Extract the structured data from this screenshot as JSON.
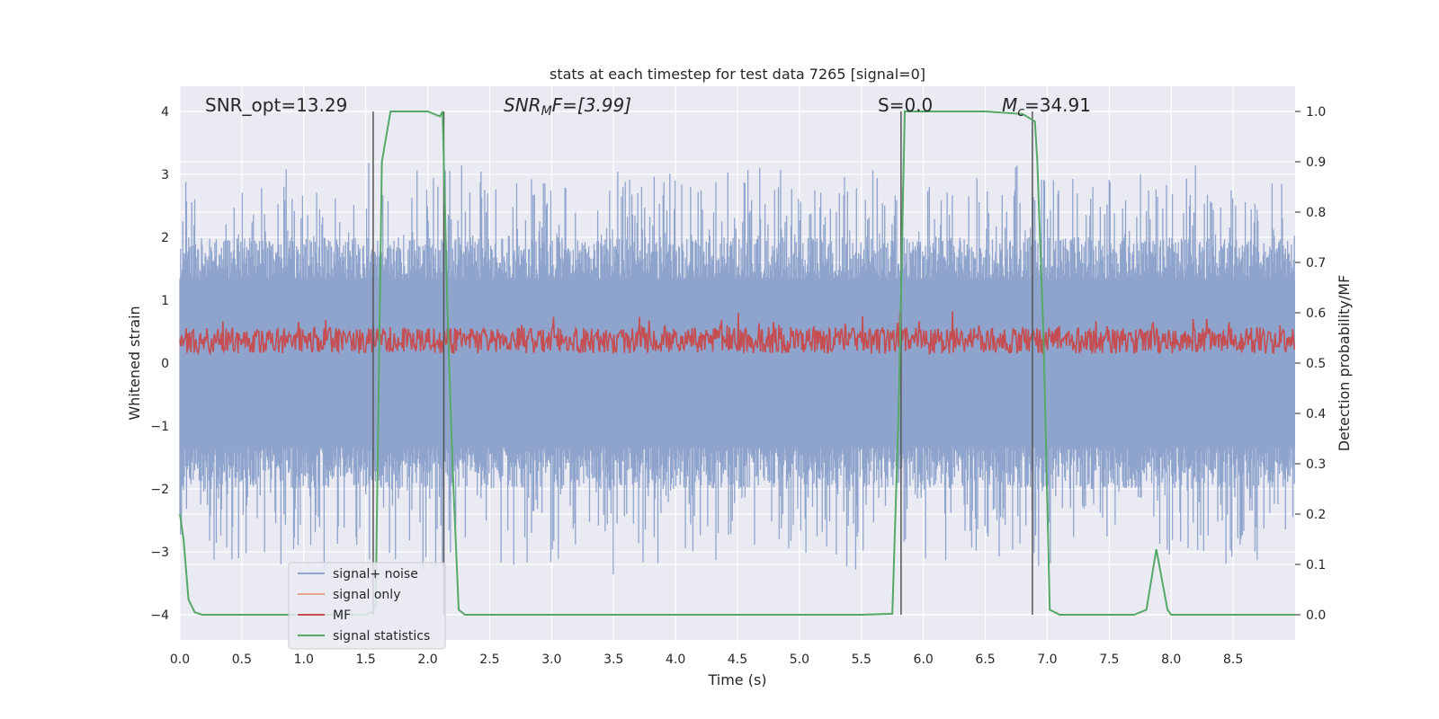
{
  "chart_data": {
    "type": "line",
    "title": "stats at each timestep for test data 7265 [signal=0]",
    "xlabel": "Time (s)",
    "ylabel": "Whitened strain",
    "y2label": "Detection probability/MF",
    "xlim": [
      0,
      9.0
    ],
    "ylim": [
      -4.4,
      4.4
    ],
    "y2lim": [
      -0.05,
      1.05
    ],
    "xticks": [
      "0.0",
      "0.5",
      "1.0",
      "1.5",
      "2.0",
      "2.5",
      "3.0",
      "3.5",
      "4.0",
      "4.5",
      "5.0",
      "5.5",
      "6.0",
      "6.5",
      "7.0",
      "7.5",
      "8.0",
      "8.5"
    ],
    "xtick_values": [
      0,
      0.5,
      1,
      1.5,
      2,
      2.5,
      3,
      3.5,
      4,
      4.5,
      5,
      5.5,
      6,
      6.5,
      7,
      7.5,
      8,
      8.5
    ],
    "yticks": [
      "4",
      "3",
      "2",
      "1",
      "0",
      "−1",
      "−2",
      "−3",
      "−4"
    ],
    "ytick_values": [
      4,
      3,
      2,
      1,
      0,
      -1,
      -2,
      -3,
      -4
    ],
    "y2ticks": [
      "1.0",
      "0.9",
      "0.8",
      "0.7",
      "0.6",
      "0.5",
      "0.4",
      "0.3",
      "0.2",
      "0.1",
      "0.0"
    ],
    "y2tick_values": [
      1.0,
      0.9,
      0.8,
      0.7,
      0.6,
      0.5,
      0.4,
      0.3,
      0.2,
      0.1,
      0.0
    ],
    "grid": true,
    "legend_position": "lower-left",
    "annotations": [
      {
        "id": "snr-opt",
        "text": "SNR_opt=13.29"
      },
      {
        "id": "snr-mf-base",
        "text": "SNR"
      },
      {
        "id": "snr-mf-sub",
        "text": "M"
      },
      {
        "id": "snr-mf-rest",
        "text": "F=[3.99]"
      },
      {
        "id": "s-label",
        "text": "S=0.0"
      },
      {
        "id": "mc-base",
        "text": "M"
      },
      {
        "id": "mc-sub",
        "text": "c"
      },
      {
        "id": "mc-rest",
        "text": "=34.91"
      }
    ],
    "vertical_lines_x": [
      1.56,
      2.13,
      5.82,
      6.88
    ],
    "series": [
      {
        "name": "signal+ noise",
        "color": "#8fa4cc",
        "axis": "left",
        "description": "noise ±1.5 with spikes"
      },
      {
        "name": "signal only",
        "color": "#e8a48a",
        "axis": "left"
      },
      {
        "name": "MF",
        "color": "#c44e52",
        "axis": "left"
      },
      {
        "name": "signal statistics",
        "color": "#55a868",
        "axis": "right",
        "x": [
          0.0,
          0.03,
          0.07,
          0.12,
          0.18,
          0.3,
          0.6,
          1.0,
          1.4,
          1.5,
          1.55,
          1.58,
          1.63,
          1.7,
          1.8,
          2.0,
          2.1,
          2.12,
          2.16,
          2.2,
          2.25,
          2.3,
          2.4,
          3.0,
          4.0,
          5.0,
          5.5,
          5.75,
          5.8,
          5.85,
          5.9,
          6.0,
          6.5,
          6.8,
          6.9,
          6.92,
          6.97,
          7.02,
          7.06,
          7.1,
          7.3,
          7.5,
          7.7,
          7.8,
          7.88,
          7.97,
          8.0,
          8.5,
          9.0
        ],
        "y": [
          0.2,
          0.15,
          0.03,
          0.005,
          0.0,
          0.0,
          0.0,
          0.0,
          0.0,
          0.0,
          0.005,
          0.02,
          0.9,
          1.0,
          1.0,
          1.0,
          0.99,
          1.0,
          0.6,
          0.3,
          0.01,
          0.0,
          0.0,
          0.0,
          0.0,
          0.0,
          0.0,
          0.002,
          0.4,
          1.0,
          1.0,
          1.0,
          1.0,
          0.995,
          0.98,
          0.9,
          0.55,
          0.01,
          0.005,
          0.0,
          0.0,
          0.0,
          0.0,
          0.01,
          0.13,
          0.01,
          0.0,
          0.0,
          0.0
        ]
      }
    ]
  }
}
